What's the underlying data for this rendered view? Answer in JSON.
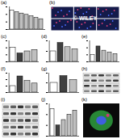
{
  "chart_data": [
    {
      "type": "bar",
      "title": "(a)",
      "categories": [
        null,
        null,
        null,
        null,
        null,
        null,
        null
      ],
      "values": [
        100,
        92,
        85,
        78,
        70,
        62,
        55
      ],
      "colors": [
        "#ffffff",
        "#bfbfbf",
        "#bfbfbf",
        "#bfbfbf",
        "#bfbfbf",
        "#bfbfbf",
        "#bfbfbf"
      ],
      "ylim": [
        0,
        120
      ],
      "yticks": [
        0,
        40,
        80,
        120
      ],
      "tick_labels": false
    },
    {
      "type": "bar",
      "title": "(c)",
      "categories": [
        null,
        null,
        null,
        null
      ],
      "values": [
        100,
        60,
        75,
        85
      ],
      "colors": [
        "#ffffff",
        "#404040",
        "#bfbfbf",
        "#bfbfbf"
      ],
      "ylim": [
        0,
        150
      ],
      "yticks": [
        0,
        50,
        100,
        150
      ],
      "tick_labels": false
    },
    {
      "type": "bar",
      "title": "(d)",
      "categories": [
        null,
        null,
        null,
        null
      ],
      "values": [
        100,
        180,
        140,
        120
      ],
      "colors": [
        "#ffffff",
        "#404040",
        "#bfbfbf",
        "#bfbfbf"
      ],
      "ylim": [
        0,
        200
      ],
      "yticks": [
        0,
        100,
        200
      ],
      "tick_labels": false
    },
    {
      "type": "bar",
      "title": "(e)",
      "categories": [
        null,
        null,
        null,
        null,
        null
      ],
      "values": [
        100,
        220,
        160,
        130,
        110
      ],
      "colors": [
        "#ffffff",
        "#404040",
        "#bfbfbf",
        "#bfbfbf",
        "#bfbfbf"
      ],
      "ylim": [
        0,
        300
      ],
      "yticks": [
        0,
        100,
        200,
        300
      ],
      "tick_labels": false
    },
    {
      "type": "bar",
      "title": "(f)",
      "categories": [
        null,
        null,
        null,
        null
      ],
      "values": [
        100,
        250,
        180,
        140
      ],
      "colors": [
        "#ffffff",
        "#404040",
        "#bfbfbf",
        "#bfbfbf"
      ],
      "ylim": [
        0,
        300
      ],
      "yticks": [
        0,
        100,
        200,
        300
      ],
      "tick_labels": false
    },
    {
      "type": "bar",
      "title": "(g)",
      "categories": [
        null,
        null,
        null
      ],
      "values": [
        100,
        170,
        130
      ],
      "colors": [
        "#ffffff",
        "#404040",
        "#bfbfbf"
      ],
      "ylim": [
        0,
        200
      ],
      "yticks": [
        0,
        100,
        200
      ],
      "tick_labels": false
    },
    {
      "type": "bar",
      "title": "(j)",
      "categories": [
        null,
        null,
        null,
        null,
        null
      ],
      "values": [
        100,
        40,
        60,
        80,
        95
      ],
      "colors": [
        "#ffffff",
        "#404040",
        "#bfbfbf",
        "#bfbfbf",
        "#bfbfbf"
      ],
      "ylim": [
        0,
        120
      ],
      "yticks": [
        0,
        40,
        80,
        120
      ],
      "tick_labels": false
    }
  ],
  "image_panels": [
    {
      "title": "(b)",
      "kind": "fluorescence_grid",
      "rows": 2,
      "cols": 3,
      "watermark": "© WILEY"
    },
    {
      "title": "(h)",
      "kind": "western_blot",
      "rows": 4
    },
    {
      "title": "(i)",
      "kind": "western_blot",
      "rows": 5
    },
    {
      "title": "(k)",
      "kind": "fluorescence"
    }
  ]
}
